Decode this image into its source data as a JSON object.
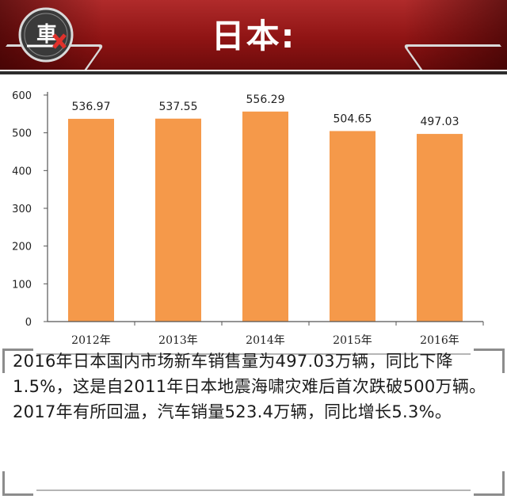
{
  "header": {
    "title": "日本:",
    "logo_text": "車"
  },
  "chart_data": {
    "type": "bar",
    "categories": [
      "2012年",
      "2013年",
      "2014年",
      "2015年",
      "2016年"
    ],
    "values": [
      536.97,
      537.55,
      556.29,
      504.65,
      497.03
    ],
    "value_labels": [
      "536.97",
      "537.55",
      "556.29",
      "504.65",
      "497.03"
    ],
    "yticks": [
      "0",
      "100",
      "200",
      "300",
      "400",
      "500",
      "600"
    ],
    "ylim": [
      0,
      600
    ],
    "grid": false,
    "legend": "none",
    "bar_color": "#f5994a"
  },
  "description": "2016年日本国内市场新车销售量为497.03万辆，同比下降1.5%，这是自2011年日本地震海啸灾难后首次跌破500万辆。2017年有所回温，汽车销量523.4万辆，同比增长5.3%。"
}
